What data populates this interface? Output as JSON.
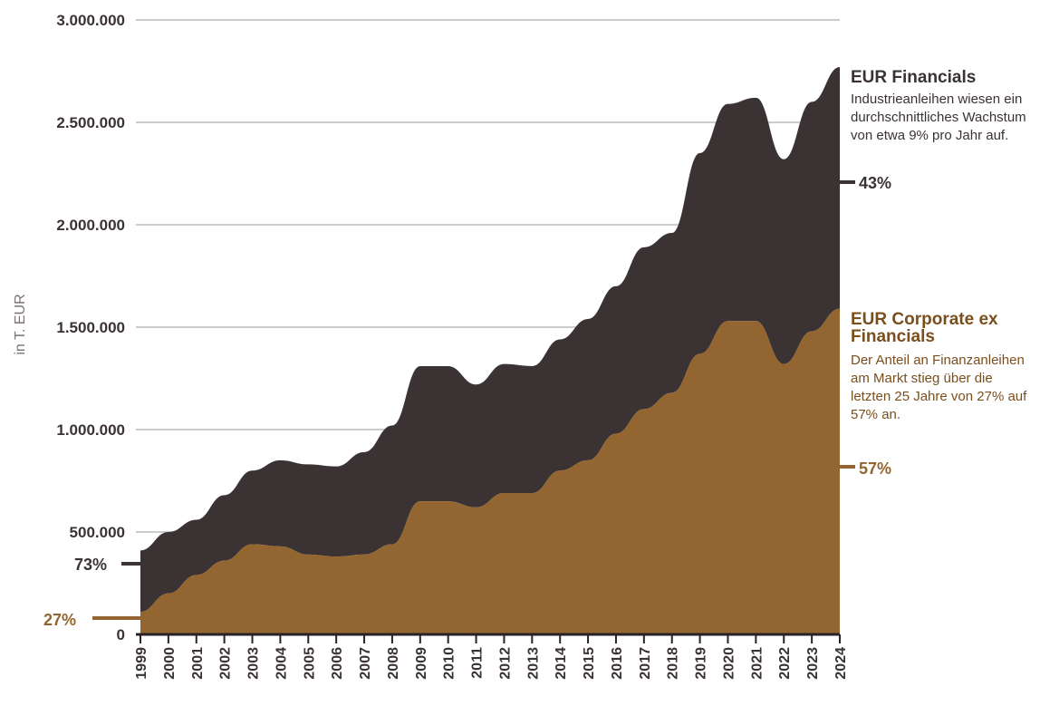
{
  "chart_data": {
    "type": "area",
    "stacked": true,
    "ylabel": "in T. EUR",
    "xlabel": "",
    "ylim": [
      0,
      3000000
    ],
    "yticks": [
      0,
      500000,
      1000000,
      1500000,
      2000000,
      2500000,
      3000000
    ],
    "ytick_labels": [
      "0",
      "500.000",
      "1.000.000",
      "1.500.000",
      "2.000.000",
      "2.500.000",
      "3.000.000"
    ],
    "grid": true,
    "categories": [
      "1999",
      "2000",
      "2001",
      "2002",
      "2003",
      "2004",
      "2005",
      "2006",
      "2007",
      "2008",
      "2009",
      "2010",
      "2011",
      "2012",
      "2013",
      "2014",
      "2015",
      "2016",
      "2017",
      "2018",
      "2019",
      "2020",
      "2021",
      "2022",
      "2023",
      "2024"
    ],
    "series": [
      {
        "name": "EUR Corporate ex Financials",
        "color": "#936530",
        "values": [
          110000,
          200000,
          290000,
          360000,
          440000,
          430000,
          390000,
          380000,
          390000,
          440000,
          650000,
          650000,
          620000,
          690000,
          690000,
          800000,
          850000,
          980000,
          1100000,
          1180000,
          1370000,
          1530000,
          1530000,
          1320000,
          1480000,
          1590000
        ]
      },
      {
        "name": "EUR Financials",
        "color": "#3a3233",
        "values": [
          300000,
          300000,
          270000,
          320000,
          360000,
          420000,
          440000,
          440000,
          500000,
          580000,
          660000,
          660000,
          600000,
          630000,
          620000,
          640000,
          690000,
          720000,
          790000,
          780000,
          980000,
          1060000,
          1090000,
          1000000,
          1120000,
          1180000
        ]
      }
    ]
  },
  "annotations": {
    "financials": {
      "title": "EUR Financials",
      "text": "Industrieanleihen wiesen ein durchschnittliches Wachstum von etwa 9% pro Jahr auf.",
      "end_pct": "43%",
      "start_pct": "73%",
      "color": "#3a3233"
    },
    "corporate": {
      "title": "EUR Corporate ex Financials",
      "text": "Der Anteil an Finanzanleihen am Markt stieg über die letzten 25 Jahre von 27% auf 57% an.",
      "end_pct": "57%",
      "start_pct": "27%",
      "color": "#7a4f1e"
    }
  }
}
